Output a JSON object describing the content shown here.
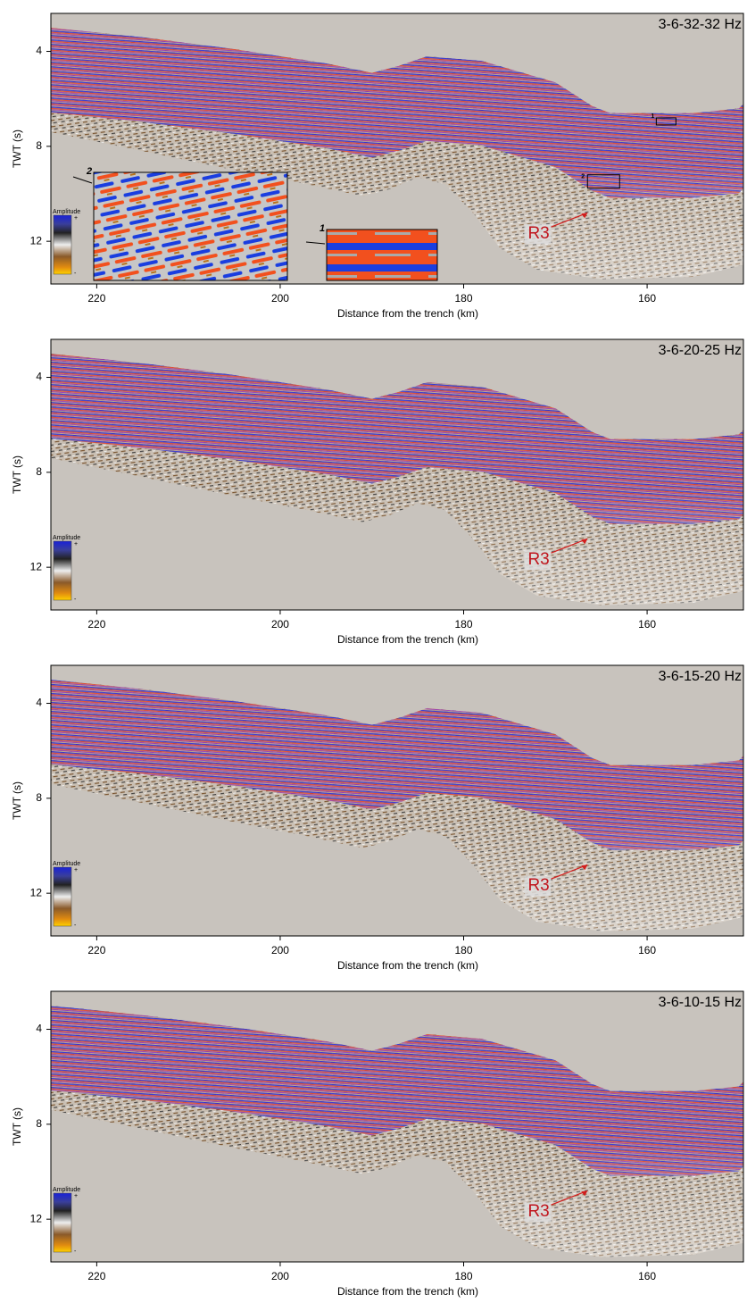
{
  "chart_data": [
    {
      "type": "seismic",
      "title": "3-6-32-32 Hz",
      "xlabel": "Distance from the trench (km)",
      "ylabel": "TWT (s)",
      "xlim": [
        225,
        149.5
      ],
      "ylim": [
        2.4,
        13.8
      ],
      "y_inverted": true,
      "xticks": [
        220,
        200,
        180,
        160
      ],
      "yticks": [
        4,
        8,
        12
      ],
      "annotation": "R3",
      "colorbar": {
        "label": "Amplitude",
        "max_label": "+",
        "min_label": "-"
      },
      "insets": [
        "1",
        "2"
      ]
    },
    {
      "type": "seismic",
      "title": "3-6-20-25 Hz",
      "xlabel": "Distance from the trench (km)",
      "ylabel": "TWT (s)",
      "xlim": [
        225,
        149.5
      ],
      "ylim": [
        2.4,
        13.8
      ],
      "y_inverted": true,
      "xticks": [
        220,
        200,
        180,
        160
      ],
      "yticks": [
        4,
        8,
        12
      ],
      "annotation": "R3",
      "colorbar": {
        "label": "Amplitude",
        "max_label": "+",
        "min_label": "-"
      }
    },
    {
      "type": "seismic",
      "title": "3-6-15-20 Hz",
      "xlabel": "Distance from the trench (km)",
      "ylabel": "TWT (s)",
      "xlim": [
        225,
        149.5
      ],
      "ylim": [
        2.4,
        13.8
      ],
      "y_inverted": true,
      "xticks": [
        220,
        200,
        180,
        160
      ],
      "yticks": [
        4,
        8,
        12
      ],
      "annotation": "R3",
      "colorbar": {
        "label": "Amplitude",
        "max_label": "+",
        "min_label": "-"
      }
    },
    {
      "type": "seismic",
      "title": "3-6-10-15 Hz",
      "xlabel": "Distance from the trench (km)",
      "ylabel": "TWT (s)",
      "xlim": [
        225,
        149.5
      ],
      "ylim": [
        2.4,
        13.8
      ],
      "y_inverted": true,
      "xticks": [
        220,
        200,
        180,
        160
      ],
      "yticks": [
        4,
        8,
        12
      ],
      "annotation": "R3",
      "colorbar": {
        "label": "Amplitude",
        "max_label": "+",
        "min_label": "-"
      }
    }
  ]
}
